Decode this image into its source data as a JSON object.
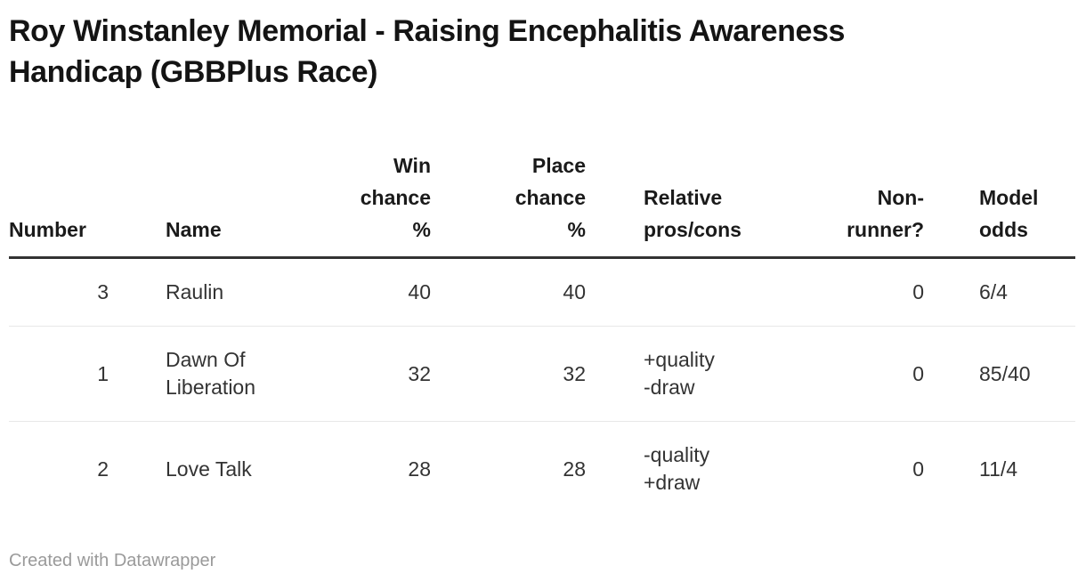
{
  "chart_data": {
    "type": "table",
    "title": "Roy Winstanley Memorial - Raising Encephalitis Awareness\nHandicap (GBBPlus Race)",
    "columns": [
      {
        "key": "number",
        "label": "Number",
        "align": "right"
      },
      {
        "key": "name",
        "label": "Name",
        "align": "left"
      },
      {
        "key": "win",
        "label": "Win\nchance\n%",
        "align": "right"
      },
      {
        "key": "place",
        "label": "Place\nchance\n%",
        "align": "right"
      },
      {
        "key": "pros",
        "label": "Relative\npros/cons",
        "align": "left"
      },
      {
        "key": "nonrunner",
        "label": "Non-\nrunner?",
        "align": "right"
      },
      {
        "key": "odds",
        "label": "Model\nodds",
        "align": "left"
      }
    ],
    "rows": [
      {
        "number": "3",
        "name": "Raulin",
        "win": "40",
        "place": "40",
        "pros": "",
        "nonrunner": "0",
        "odds": "6/4"
      },
      {
        "number": "1",
        "name": "Dawn Of Liberation",
        "win": "32",
        "place": "32",
        "pros": "+quality\n-draw",
        "nonrunner": "0",
        "odds": "85/40"
      },
      {
        "number": "2",
        "name": "Love Talk",
        "win": "28",
        "place": "28",
        "pros": "-quality\n+draw",
        "nonrunner": "0",
        "odds": "11/4"
      }
    ],
    "layout_hints": {
      "grid": "horizontal row separators only",
      "header_rule": "thick dark line under header"
    }
  },
  "footer": {
    "credit": "Created with Datawrapper"
  },
  "colors": {
    "background": "#ffffff",
    "title_text": "#141414",
    "header_text": "#1a1a1a",
    "body_text": "#333333",
    "header_border": "#333333",
    "row_border": "#e8e8e8",
    "credit_text": "#9a9a9a"
  }
}
